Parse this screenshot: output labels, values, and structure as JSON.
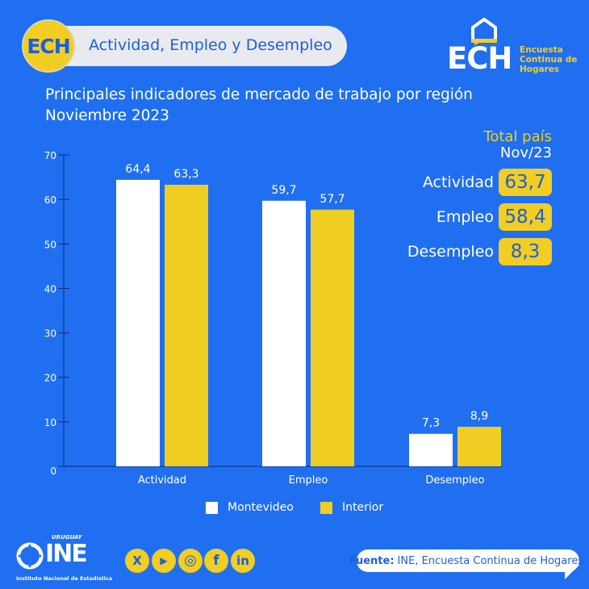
{
  "header": {
    "badge": "ECH",
    "title": "Actividad, Empleo y Desempleo"
  },
  "logo": {
    "name": "ECH",
    "subtitle_lines": [
      "Encuesta",
      "Continua de",
      "Hogares"
    ]
  },
  "subtitle": {
    "line1": "Principales indicadores de mercado de trabajo por región",
    "line2": "Noviembre 2023"
  },
  "total_pais": {
    "title": "Total país",
    "period": "Nov/23",
    "items": [
      {
        "label": "Actividad",
        "value": "63,7"
      },
      {
        "label": "Empleo",
        "value": "58,4"
      },
      {
        "label": "Desempleo",
        "value": "8,3"
      }
    ]
  },
  "chart_data": {
    "type": "bar",
    "title": "Principales indicadores de mercado de trabajo por región",
    "subtitle": "Noviembre 2023",
    "categories": [
      "Actividad",
      "Empleo",
      "Desempleo"
    ],
    "series": [
      {
        "name": "Montevideo",
        "values": [
          64.4,
          59.7,
          7.3
        ],
        "labels": [
          "64,4",
          "59,7",
          "7,3"
        ],
        "color": "#ffffff"
      },
      {
        "name": "Interior",
        "values": [
          63.3,
          57.7,
          8.9
        ],
        "labels": [
          "63,3",
          "57,7",
          "8,9"
        ],
        "color": "#f0cd22"
      }
    ],
    "ylim": [
      0,
      70
    ],
    "yticks": [
      0,
      10,
      20,
      30,
      40,
      50,
      60,
      70
    ],
    "xlabel": "",
    "ylabel": "",
    "grid": false,
    "legend": "bottom"
  },
  "footer": {
    "ine_country": "URUGUAY",
    "ine_name": "INE",
    "ine_full": "Instituto Nacional de Estadística",
    "social": [
      {
        "icon": "x-icon",
        "glyph": "X"
      },
      {
        "icon": "youtube-icon",
        "glyph": "▶"
      },
      {
        "icon": "instagram-icon",
        "glyph": "◎"
      },
      {
        "icon": "facebook-icon",
        "glyph": "f"
      },
      {
        "icon": "linkedin-icon",
        "glyph": "in"
      }
    ],
    "source_label": "Fuente:",
    "source_text": "INE, Encuesta Continua de Hogares."
  },
  "colors": {
    "background": "#1f6ff0",
    "accent_yellow": "#f2cd22",
    "text_blue": "#1f5fd6"
  }
}
